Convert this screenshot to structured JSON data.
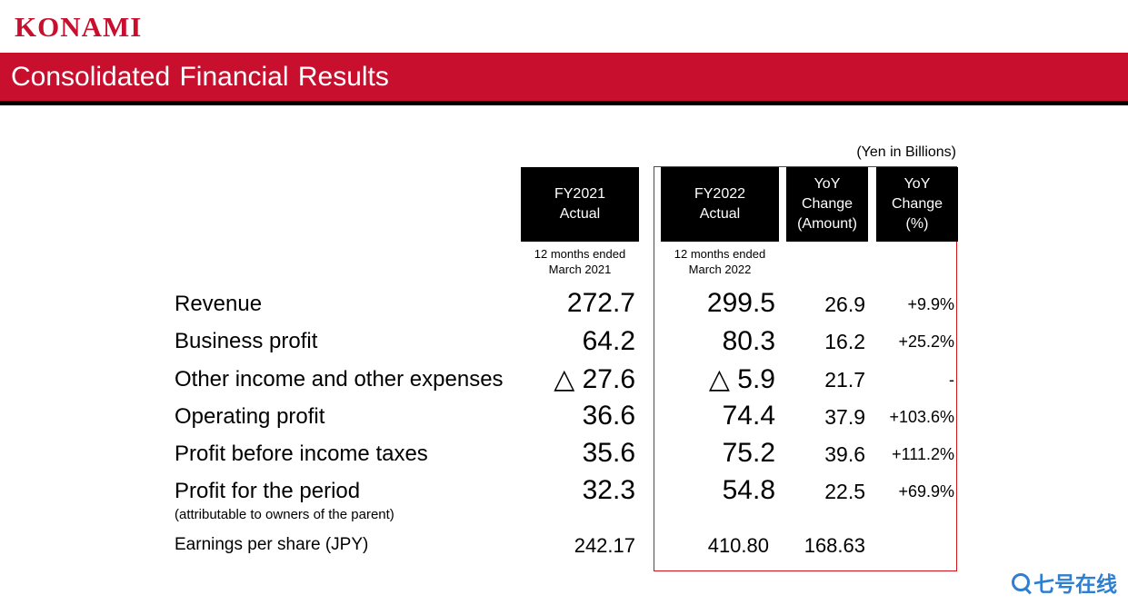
{
  "brand": {
    "logo_text": "KONAMI",
    "accent_color": "#c8102e"
  },
  "title": "Consolidated Financial Results",
  "unit_note": "(Yen in Billions)",
  "columns": [
    {
      "header": "FY2021\nActual",
      "sub": "12 months ended\nMarch 2021"
    },
    {
      "header": "FY2022\nActual",
      "sub": "12 months ended\nMarch 2022"
    },
    {
      "header": "YoY\nChange\n(Amount)",
      "sub": ""
    },
    {
      "header": "YoY\nChange\n(%)",
      "sub": ""
    }
  ],
  "rows": [
    {
      "label": "Revenue",
      "fy2021": "272.7",
      "fy2022": "299.5",
      "yoy_amount": "26.9",
      "yoy_pct": "+9.9%"
    },
    {
      "label": "Business profit",
      "fy2021": "64.2",
      "fy2022": "80.3",
      "yoy_amount": "16.2",
      "yoy_pct": "+25.2%"
    },
    {
      "label": "Other income and other expenses",
      "fy2021": "△ 27.6",
      "fy2022": "△ 5.9",
      "yoy_amount": "21.7",
      "yoy_pct": "-"
    },
    {
      "label": "Operating profit",
      "fy2021": "36.6",
      "fy2022": "74.4",
      "yoy_amount": "37.9",
      "yoy_pct": "+103.6%"
    },
    {
      "label": "Profit before income taxes",
      "fy2021": "35.6",
      "fy2022": "75.2",
      "yoy_amount": "39.6",
      "yoy_pct": "+111.2%"
    },
    {
      "label": "Profit for the period",
      "note": "(attributable to owners of the parent)",
      "fy2021": "32.3",
      "fy2022": "54.8",
      "yoy_amount": "22.5",
      "yoy_pct": "+69.9%"
    }
  ],
  "eps": {
    "label": "Earnings per share (JPY)",
    "fy2021": "242.17",
    "fy2022": "410.80",
    "yoy_amount": "168.63"
  },
  "watermark": {
    "icon": "search-icon",
    "text": "七号在线",
    "color": "#2f7fd0"
  }
}
